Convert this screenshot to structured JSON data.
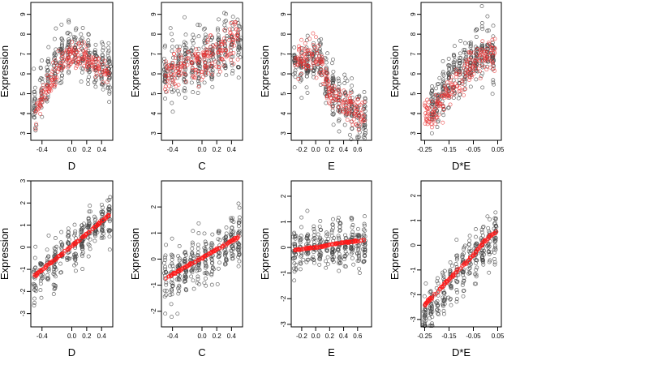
{
  "chart_data": [
    {
      "type": "scatter",
      "xlabel": "D",
      "ylabel": "Expression",
      "xlim": [
        -0.55,
        0.55
      ],
      "ylim": [
        2.65,
        9.6
      ],
      "xticks": [
        -0.4,
        0.0,
        0.2,
        0.4
      ],
      "xtick_labels": [
        "-0.4",
        "0.0",
        "0.2",
        "0.4"
      ],
      "yticks": [
        3,
        4,
        5,
        6,
        7,
        8,
        9
      ],
      "ytick_labels": [
        "3",
        "4",
        "5",
        "6",
        "7",
        "8",
        "9"
      ],
      "series": [
        {
          "kind": "observed",
          "color": "#444444",
          "center": [
            [
              -0.5,
              4.2
            ],
            [
              -0.4,
              5.0
            ],
            [
              -0.2,
              6.6
            ],
            [
              -0.1,
              7.0
            ],
            [
              0.0,
              7.2
            ],
            [
              0.1,
              7.3
            ],
            [
              0.2,
              6.8
            ],
            [
              0.4,
              6.4
            ],
            [
              0.5,
              6.0
            ]
          ],
          "spread": 1.2,
          "n": 320
        },
        {
          "kind": "fitted",
          "color": "#e83030",
          "center": [
            [
              -0.5,
              3.8
            ],
            [
              -0.4,
              4.8
            ],
            [
              -0.2,
              6.2
            ],
            [
              -0.1,
              6.7
            ],
            [
              0.0,
              7.0
            ],
            [
              0.1,
              7.0
            ],
            [
              0.2,
              6.7
            ],
            [
              0.4,
              6.3
            ],
            [
              0.5,
              6.0
            ]
          ],
          "spread": 0.6,
          "n": 200
        }
      ]
    },
    {
      "type": "scatter",
      "xlabel": "C",
      "ylabel": "Expression",
      "xlim": [
        -0.55,
        0.55
      ],
      "ylim": [
        2.65,
        9.6
      ],
      "xticks": [
        -0.4,
        0.0,
        0.2,
        0.4
      ],
      "xtick_labels": [
        "-0.4",
        "0.0",
        "0.2",
        "0.4"
      ],
      "yticks": [
        3,
        4,
        5,
        6,
        7,
        8,
        9
      ],
      "ytick_labels": [
        "3",
        "4",
        "5",
        "6",
        "7",
        "8",
        "9"
      ],
      "series": [
        {
          "kind": "observed",
          "color": "#444444",
          "center": [
            [
              -0.5,
              6.0
            ],
            [
              -0.3,
              6.3
            ],
            [
              0.0,
              6.7
            ],
            [
              0.2,
              7.0
            ],
            [
              0.4,
              7.4
            ],
            [
              0.5,
              7.6
            ]
          ],
          "spread": 1.4,
          "n": 320
        },
        {
          "kind": "fitted",
          "color": "#e83030",
          "center": [
            [
              -0.5,
              5.9
            ],
            [
              -0.3,
              6.2
            ],
            [
              0.0,
              6.6
            ],
            [
              0.2,
              7.0
            ],
            [
              0.4,
              7.4
            ],
            [
              0.5,
              7.7
            ]
          ],
          "spread": 1.0,
          "n": 200
        }
      ]
    },
    {
      "type": "scatter",
      "xlabel": "E",
      "ylabel": "Expression",
      "xlim": [
        -0.35,
        0.8
      ],
      "ylim": [
        2.65,
        9.6
      ],
      "xticks": [
        -0.2,
        0.0,
        0.2,
        0.4,
        0.6
      ],
      "xtick_labels": [
        "-0.2",
        "0.0",
        "0.2",
        "0.4",
        "0.6"
      ],
      "yticks": [
        3,
        4,
        5,
        6,
        7,
        8,
        9
      ],
      "ytick_labels": [
        "3",
        "4",
        "5",
        "6",
        "7",
        "8",
        "9"
      ],
      "series": [
        {
          "kind": "observed",
          "color": "#444444",
          "center": [
            [
              -0.3,
              6.5
            ],
            [
              -0.1,
              6.6
            ],
            [
              0.0,
              6.8
            ],
            [
              0.1,
              6.4
            ],
            [
              0.2,
              5.2
            ],
            [
              0.4,
              4.6
            ],
            [
              0.7,
              3.6
            ]
          ],
          "spread": 1.1,
          "n": 320
        },
        {
          "kind": "fitted",
          "color": "#e83030",
          "center": [
            [
              -0.3,
              6.6
            ],
            [
              -0.1,
              6.8
            ],
            [
              0.0,
              7.0
            ],
            [
              0.1,
              6.4
            ],
            [
              0.2,
              5.0
            ],
            [
              0.4,
              4.4
            ],
            [
              0.7,
              4.0
            ]
          ],
          "spread": 0.7,
          "n": 200
        }
      ]
    },
    {
      "type": "scatter",
      "xlabel": "D*E",
      "ylabel": "Expression",
      "xlim": [
        -0.265,
        0.065
      ],
      "ylim": [
        2.65,
        9.6
      ],
      "xticks": [
        -0.25,
        -0.15,
        -0.05,
        0.05
      ],
      "xtick_labels": [
        "-0.25",
        "-0.15",
        "-0.05",
        "0.05"
      ],
      "yticks": [
        3,
        4,
        5,
        6,
        7,
        8,
        9
      ],
      "ytick_labels": [
        "3",
        "4",
        "5",
        "6",
        "7",
        "8",
        "9"
      ],
      "series": [
        {
          "kind": "observed",
          "color": "#444444",
          "center": [
            [
              -0.22,
              4.2
            ],
            [
              -0.15,
              5.5
            ],
            [
              -0.12,
              6.2
            ],
            [
              -0.05,
              6.8
            ],
            [
              0.0,
              7.2
            ],
            [
              0.03,
              6.8
            ]
          ],
          "spread": 1.2,
          "n": 320
        },
        {
          "kind": "fitted",
          "color": "#e83030",
          "center": [
            [
              -0.25,
              3.8
            ],
            [
              -0.18,
              4.5
            ],
            [
              -0.12,
              5.6
            ],
            [
              -0.05,
              6.6
            ],
            [
              0.0,
              7.0
            ],
            [
              0.04,
              7.0
            ]
          ],
          "spread": 0.8,
          "n": 200
        }
      ]
    },
    {
      "type": "scatter",
      "xlabel": "D",
      "ylabel": "Expression",
      "xlim": [
        -0.55,
        0.55
      ],
      "ylim": [
        -3.6,
        3.0
      ],
      "xticks": [
        -0.4,
        0.0,
        0.2,
        0.4
      ],
      "xtick_labels": [
        "-0.4",
        "0.0",
        "0.2",
        "0.4"
      ],
      "yticks": [
        -3,
        -2,
        -1,
        0,
        1,
        2,
        3
      ],
      "ytick_labels": [
        "-3",
        "-2",
        "-1",
        "0",
        "1",
        "2",
        "3"
      ],
      "series": [
        {
          "kind": "observed",
          "color": "#444444",
          "center": [
            [
              -0.5,
              -1.4
            ],
            [
              0.0,
              0.0
            ],
            [
              0.5,
              1.4
            ]
          ],
          "spread": 0.9,
          "n": 320
        },
        {
          "kind": "fitted",
          "color": "#ff1a1a",
          "center": [
            [
              -0.5,
              -1.3
            ],
            [
              0.0,
              0.05
            ],
            [
              0.5,
              1.45
            ]
          ],
          "spread": 0.05,
          "n": 160
        }
      ]
    },
    {
      "type": "scatter",
      "xlabel": "C",
      "ylabel": "Expression",
      "xlim": [
        -0.55,
        0.55
      ],
      "ylim": [
        -2.6,
        3.0
      ],
      "xticks": [
        -0.4,
        0.0,
        0.2,
        0.4
      ],
      "xtick_labels": [
        "-0.4",
        "0.0",
        "0.2",
        "0.4"
      ],
      "yticks": [
        -2,
        -1,
        0,
        1,
        2
      ],
      "ytick_labels": [
        "-2",
        "-1",
        "0",
        "1",
        "2"
      ],
      "series": [
        {
          "kind": "observed",
          "color": "#444444",
          "center": [
            [
              -0.5,
              -0.7
            ],
            [
              0.0,
              0.0
            ],
            [
              0.5,
              0.8
            ]
          ],
          "spread": 0.9,
          "n": 320
        },
        {
          "kind": "fitted",
          "color": "#ff1a1a",
          "center": [
            [
              -0.5,
              -0.75
            ],
            [
              0.0,
              0.05
            ],
            [
              0.5,
              0.85
            ]
          ],
          "spread": 0.04,
          "n": 160
        }
      ]
    },
    {
      "type": "scatter",
      "xlabel": "E",
      "ylabel": "Expression",
      "xlim": [
        -0.35,
        0.8
      ],
      "ylim": [
        -3.1,
        2.6
      ],
      "xticks": [
        -0.2,
        0.0,
        0.2,
        0.4,
        0.6
      ],
      "xtick_labels": [
        "-0.2",
        "0.0",
        "0.2",
        "0.4",
        "0.6"
      ],
      "yticks": [
        -3,
        -2,
        -1,
        0,
        1,
        2
      ],
      "ytick_labels": [
        "-3",
        "-2",
        "-1",
        "0",
        "1",
        "2"
      ],
      "series": [
        {
          "kind": "observed",
          "color": "#444444",
          "center": [
            [
              -0.3,
              -0.1
            ],
            [
              0.0,
              0.0
            ],
            [
              0.3,
              0.1
            ],
            [
              0.7,
              0.2
            ]
          ],
          "spread": 0.9,
          "n": 320
        },
        {
          "kind": "fitted",
          "color": "#ff1a1a",
          "center": [
            [
              -0.3,
              -0.1
            ],
            [
              0.0,
              0.0
            ],
            [
              0.3,
              0.15
            ],
            [
              0.7,
              0.3
            ]
          ],
          "spread": 0.03,
          "n": 160
        }
      ]
    },
    {
      "type": "scatter",
      "xlabel": "D*E",
      "ylabel": "Expression",
      "xlim": [
        -0.265,
        0.065
      ],
      "ylim": [
        -3.3,
        2.6
      ],
      "xticks": [
        -0.25,
        -0.15,
        -0.05,
        0.05
      ],
      "xtick_labels": [
        "-0.25",
        "-0.15",
        "-0.05",
        "0.05"
      ],
      "yticks": [
        -3,
        -2,
        -1,
        0,
        1,
        2
      ],
      "ytick_labels": [
        "-3",
        "-2",
        "-1",
        "0",
        "1",
        "2"
      ],
      "series": [
        {
          "kind": "observed",
          "color": "#444444",
          "center": [
            [
              -0.25,
              -3.0
            ],
            [
              -0.12,
              -1.2
            ],
            [
              -0.05,
              -0.5
            ],
            [
              0.0,
              0.0
            ],
            [
              0.04,
              0.3
            ]
          ],
          "spread": 1.0,
          "n": 320
        },
        {
          "kind": "fitted",
          "color": "#ff1a1a",
          "center": [
            [
              -0.25,
              -2.4
            ],
            [
              -0.12,
              -1.1
            ],
            [
              -0.05,
              -0.4
            ],
            [
              0.0,
              0.2
            ],
            [
              0.05,
              0.6
            ]
          ],
          "spread": 0.06,
          "n": 160
        }
      ]
    }
  ]
}
